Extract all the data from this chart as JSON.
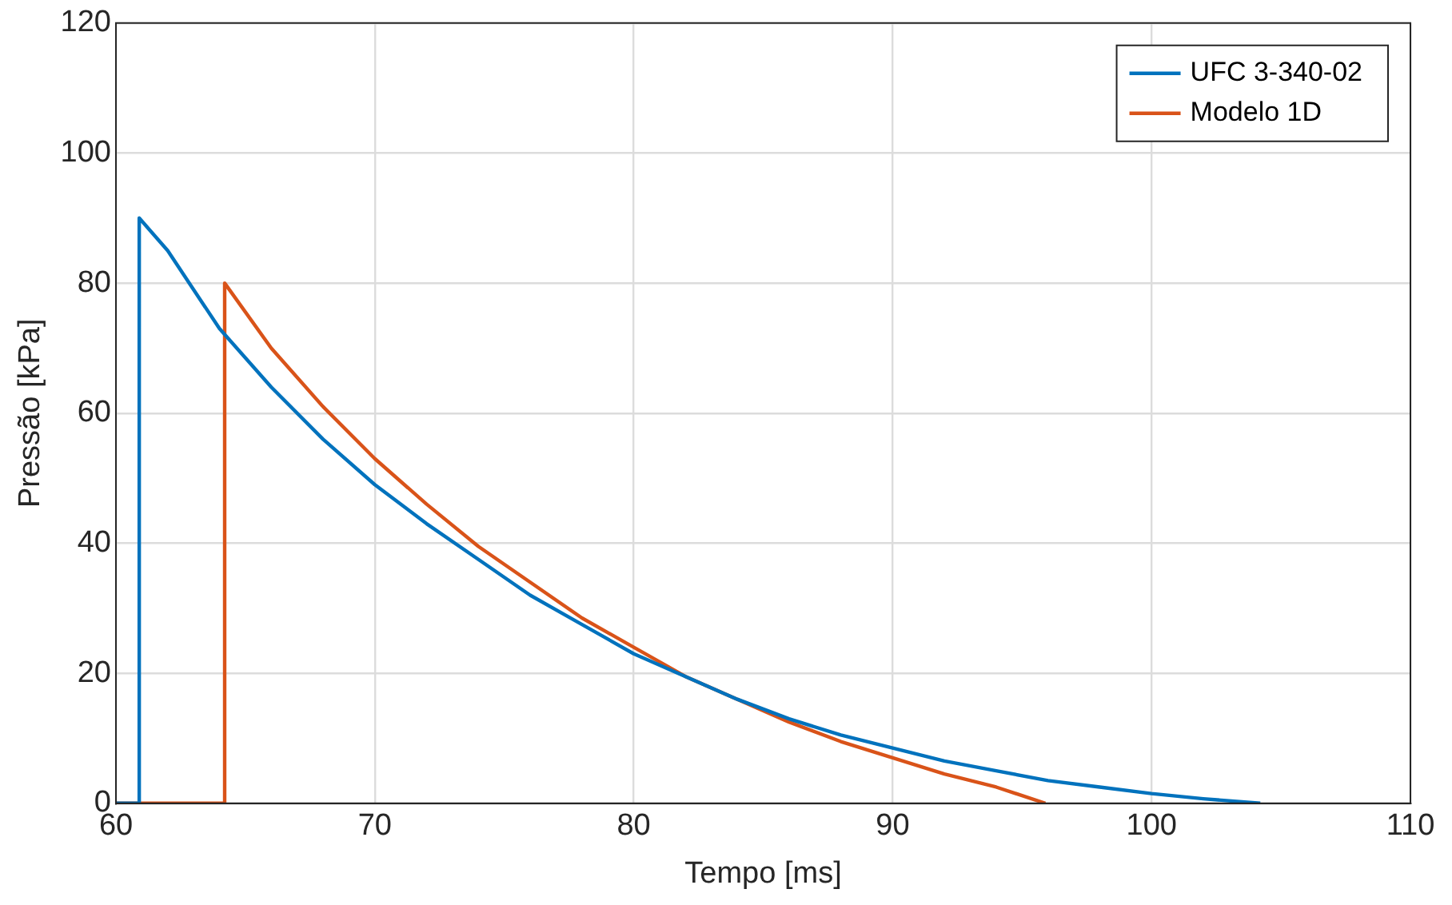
{
  "chart_data": {
    "type": "line",
    "xlabel": "Tempo [ms]",
    "ylabel": "Pressão [kPa]",
    "xlim": [
      60,
      110
    ],
    "xticks": [
      60,
      70,
      80,
      90,
      100,
      110
    ],
    "ylim": [
      0,
      120
    ],
    "yticks": [
      0,
      20,
      40,
      60,
      80,
      100,
      120
    ],
    "grid": true,
    "legend": "top right",
    "marker": "none",
    "line_style": "solid",
    "series": [
      {
        "name": "UFC 3-340-02",
        "color": "#0072bd",
        "x": [
          60,
          60.9,
          60.9,
          62,
          64,
          66,
          68,
          70,
          72,
          74,
          76,
          78,
          80,
          82,
          84,
          86,
          88,
          90,
          92,
          94,
          96,
          98,
          100,
          102,
          104.2
        ],
        "values": [
          0,
          0,
          90,
          85,
          73,
          64,
          56,
          49,
          43,
          37.5,
          32,
          27.5,
          23,
          19.5,
          16,
          13,
          10.5,
          8.5,
          6.5,
          5,
          3.5,
          2.5,
          1.5,
          0.7,
          0
        ]
      },
      {
        "name": "Modelo 1D",
        "color": "#d95319",
        "x": [
          60,
          64.2,
          64.2,
          66,
          68,
          70,
          72,
          74,
          76,
          78,
          80,
          82,
          84,
          86,
          88,
          90,
          92,
          94,
          95.9
        ],
        "values": [
          0,
          0,
          80,
          70,
          61,
          53,
          46,
          39.5,
          34,
          28.5,
          24,
          19.5,
          16,
          12.5,
          9.5,
          7,
          4.5,
          2.5,
          0
        ]
      }
    ]
  }
}
